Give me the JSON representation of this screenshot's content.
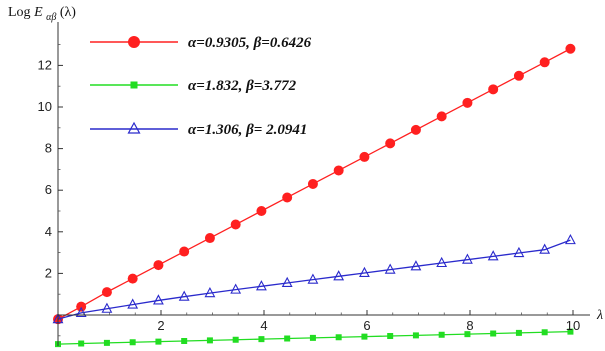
{
  "chart_data": {
    "type": "line",
    "ylabel": "Log E_{αβ}(λ)",
    "xlabel": "λ",
    "xlim": [
      0,
      10.2
    ],
    "ylim": [
      -1.4,
      13.6
    ],
    "xticks": [
      2,
      4,
      6,
      8,
      10
    ],
    "yticks": [
      2,
      4,
      6,
      8,
      10,
      12
    ],
    "legend_position": "top-left",
    "series": [
      {
        "name": "α=0.9305, β=0.6426",
        "color": "#ff2020",
        "marker": "circle",
        "x": [
          0,
          0.45,
          0.95,
          1.45,
          1.95,
          2.45,
          2.95,
          3.45,
          3.95,
          4.45,
          4.95,
          5.45,
          5.95,
          6.45,
          6.95,
          7.45,
          7.95,
          8.45,
          8.95,
          9.45,
          9.95
        ],
        "y": [
          -0.2,
          0.4,
          1.1,
          1.75,
          2.4,
          3.05,
          3.7,
          4.35,
          5.0,
          5.65,
          6.3,
          6.95,
          7.6,
          8.25,
          8.9,
          9.55,
          10.2,
          10.85,
          11.5,
          12.15,
          12.8
        ]
      },
      {
        "name": "α=1.832, β=3.772",
        "color": "#22dd22",
        "marker": "square",
        "x": [
          0,
          0.45,
          0.95,
          1.45,
          1.95,
          2.45,
          2.95,
          3.45,
          3.95,
          4.45,
          4.95,
          5.45,
          5.95,
          6.45,
          6.95,
          7.45,
          7.95,
          8.45,
          8.95,
          9.45,
          9.95
        ],
        "y": [
          -1.4,
          -1.37,
          -1.34,
          -1.31,
          -1.28,
          -1.25,
          -1.22,
          -1.19,
          -1.16,
          -1.13,
          -1.1,
          -1.07,
          -1.04,
          -1.01,
          -0.98,
          -0.95,
          -0.92,
          -0.89,
          -0.86,
          -0.83,
          -0.8
        ]
      },
      {
        "name": "α=1.306, β= 2.0941",
        "color": "#2a2acc",
        "marker": "triangle",
        "x": [
          0,
          0.45,
          0.95,
          1.45,
          1.95,
          2.45,
          2.95,
          3.45,
          3.95,
          4.45,
          4.95,
          5.45,
          5.95,
          6.45,
          6.95,
          7.45,
          7.95,
          8.45,
          8.95,
          9.45,
          9.95
        ],
        "y": [
          -0.2,
          0.1,
          0.3,
          0.5,
          0.7,
          0.88,
          1.05,
          1.22,
          1.38,
          1.54,
          1.7,
          1.86,
          2.02,
          2.18,
          2.34,
          2.5,
          2.66,
          2.82,
          2.98,
          3.14,
          3.6
        ]
      }
    ]
  }
}
